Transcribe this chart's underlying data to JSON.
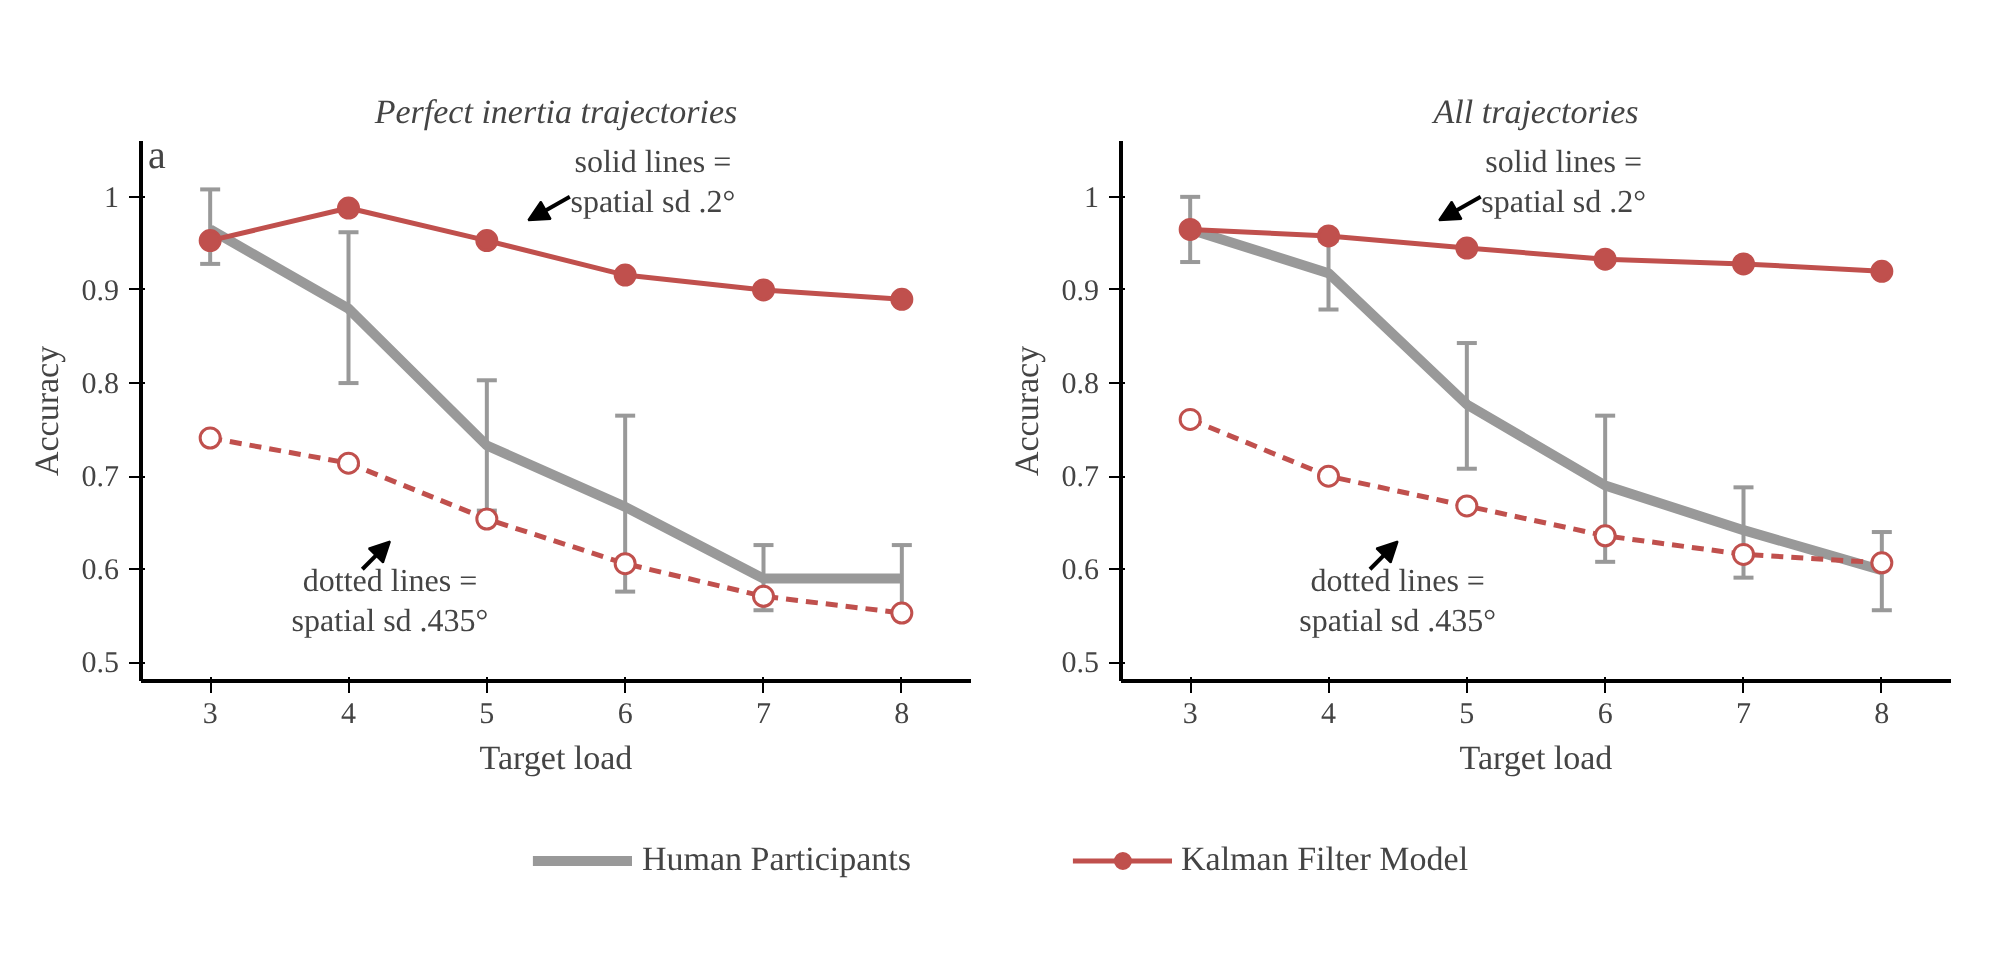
{
  "chart_data": [
    {
      "type": "line",
      "title": "Perfect inertia trajectories",
      "xlabel": "Target load",
      "ylabel": "Accuracy",
      "categories": [
        "3",
        "4",
        "5",
        "6",
        "7",
        "8"
      ],
      "ylim": [
        0.48,
        1.06
      ],
      "yticks": [
        0.5,
        0.6,
        0.7,
        0.8,
        0.9,
        1
      ],
      "annotations": [
        "a",
        "solid lines = spatial sd .2°",
        "dotted lines = spatial sd .435°"
      ],
      "legend": "bottom",
      "grid": false,
      "series": [
        {
          "name": "Human Participants",
          "color": "#999999",
          "marker": "none",
          "line_style": "solid",
          "values": [
            0.965,
            0.88,
            0.733,
            0.667,
            0.59,
            0.59
          ],
          "errors": [
            [
              0.928,
              1.008
            ],
            [
              0.8,
              0.962
            ],
            [
              0.663,
              0.803
            ],
            [
              0.576,
              0.765
            ],
            [
              0.556,
              0.626
            ],
            [
              0.556,
              0.626
            ]
          ]
        },
        {
          "name": "Kalman Filter Model",
          "color": "#c0504d",
          "marker": "circle",
          "line_style": "solid",
          "values": [
            0.953,
            0.988,
            0.953,
            0.916,
            0.9,
            0.89
          ]
        },
        {
          "color": "#c0504d",
          "marker": "circle",
          "line_style": "dashed",
          "values": [
            0.741,
            0.714,
            0.654,
            0.606,
            0.571,
            0.553
          ]
        }
      ]
    },
    {
      "type": "line",
      "title": "All trajectories",
      "xlabel": "Target load",
      "ylabel": "Accuracy",
      "categories": [
        "3",
        "4",
        "5",
        "6",
        "7",
        "8"
      ],
      "ylim": [
        0.48,
        1.06
      ],
      "yticks": [
        0.5,
        0.6,
        0.7,
        0.8,
        0.9,
        1
      ],
      "annotations": [
        "solid lines = spatial sd .2°",
        "dotted lines = spatial sd .435°"
      ],
      "grid": false,
      "series": [
        {
          "color": "#999999",
          "marker": "none",
          "line_style": "solid",
          "values": [
            0.965,
            0.918,
            0.777,
            0.69,
            0.642,
            0.599
          ],
          "errors": [
            [
              0.93,
              1.0
            ],
            [
              0.879,
              0.953
            ],
            [
              0.708,
              0.843
            ],
            [
              0.608,
              0.765
            ],
            [
              0.591,
              0.688
            ],
            [
              0.556,
              0.64
            ]
          ]
        },
        {
          "color": "#c0504d",
          "marker": "circle",
          "line_style": "solid",
          "values": [
            0.965,
            0.958,
            0.945,
            0.933,
            0.928,
            0.92
          ]
        },
        {
          "color": "#c0504d",
          "marker": "circle",
          "line_style": "dashed",
          "values": [
            0.761,
            0.7,
            0.668,
            0.636,
            0.616,
            0.607
          ]
        }
      ]
    }
  ]
}
